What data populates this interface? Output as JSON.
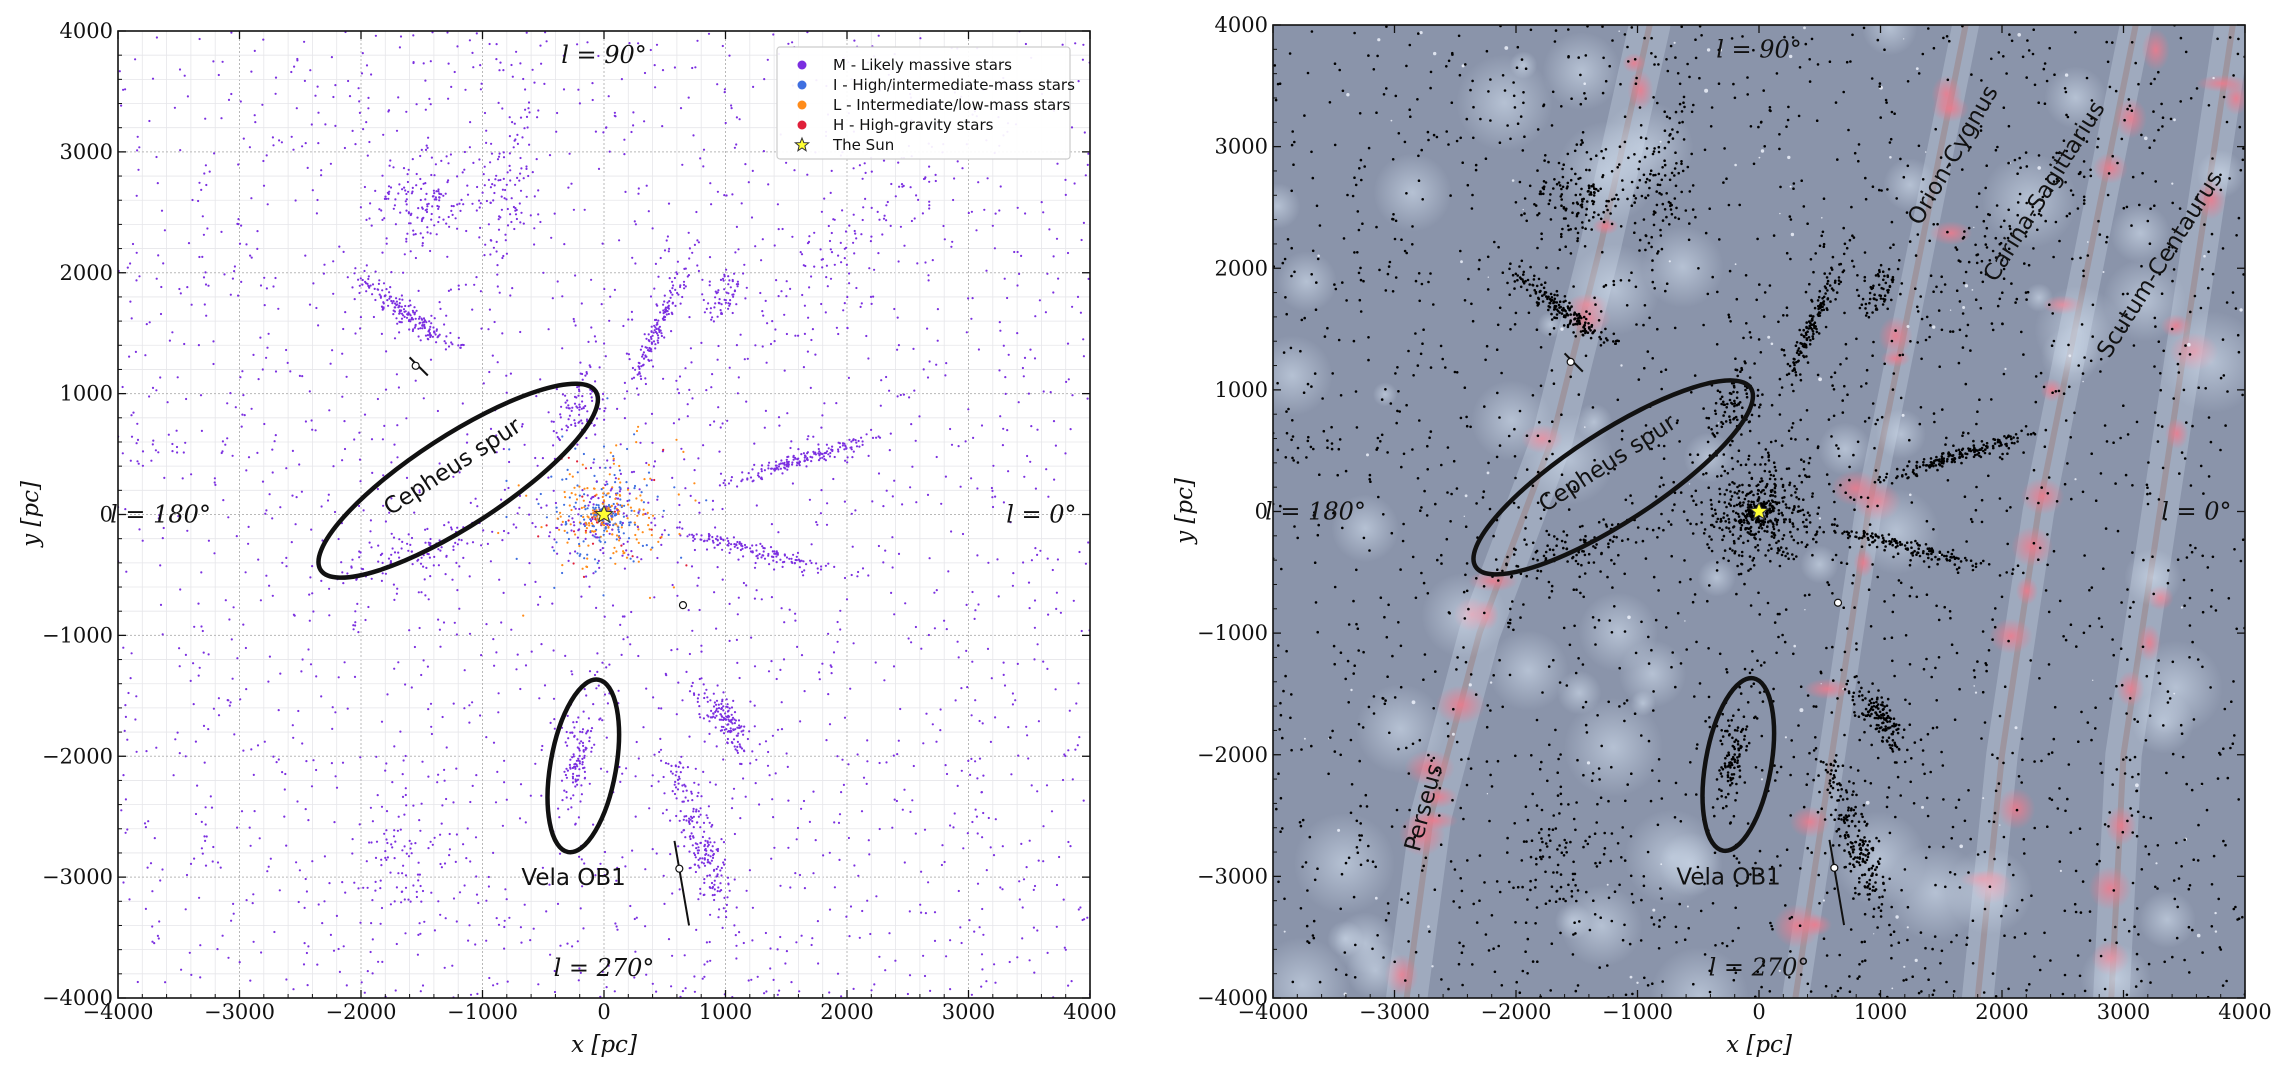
{
  "chart_data": [
    {
      "type": "scatter",
      "title": "",
      "xlabel": "x [pc]",
      "ylabel": "y [pc]",
      "xlim": [
        -4000,
        4000
      ],
      "ylim": [
        -4000,
        4000
      ],
      "ticks": [
        "−4000",
        "−3000",
        "−2000",
        "−1000",
        "0",
        "1000",
        "2000",
        "3000",
        "4000"
      ],
      "tick_values": [
        -4000,
        -3000,
        -2000,
        -1000,
        0,
        1000,
        2000,
        3000,
        4000
      ],
      "grid": true,
      "legend_position": "top-right",
      "series": [
        {
          "name": "M - Likely massive stars",
          "color": "#7b2fe0"
        },
        {
          "name": "I - High/intermediate-mass stars",
          "color": "#3f6fe0"
        },
        {
          "name": "L - Intermediate/low-mass stars",
          "color": "#ff8c1a"
        },
        {
          "name": "H - High-gravity stars",
          "color": "#e0203a"
        },
        {
          "name": "The Sun",
          "color": "#ffff33",
          "marker": "star",
          "x": 0,
          "y": 0
        }
      ],
      "longitude_labels": [
        {
          "text": "l =  90°",
          "x": 0,
          "y": 3800
        },
        {
          "text": "l =  180°",
          "x": -3650,
          "y": 0
        },
        {
          "text": "l =  0°",
          "x": 3600,
          "y": 0
        },
        {
          "text": "l =  270°",
          "x": 0,
          "y": -3750
        }
      ],
      "annotations": [
        {
          "text": "Cepheus spur",
          "x": -1250,
          "y": 400
        },
        {
          "text": "Vela OB1",
          "x": -250,
          "y": -3000
        }
      ],
      "regions": [
        {
          "name": "Cepheus spur",
          "center": [
            -1200,
            280
          ],
          "semi_axes": [
            1350,
            370
          ],
          "angle_deg": 33
        },
        {
          "name": "Vela OB1",
          "center": [
            -170,
            -2080
          ],
          "semi_axes": [
            720,
            270
          ],
          "angle_deg": 80
        }
      ],
      "background": "white"
    },
    {
      "type": "scatter",
      "title": "",
      "xlabel": "x [pc]",
      "ylabel": "y [pc]",
      "xlim": [
        -4000,
        4000
      ],
      "ylim": [
        -4000,
        4000
      ],
      "ticks": [
        "−4000",
        "−3000",
        "−2000",
        "−1000",
        "0",
        "1000",
        "2000",
        "3000",
        "4000"
      ],
      "tick_values": [
        -4000,
        -3000,
        -2000,
        -1000,
        0,
        1000,
        2000,
        3000,
        4000
      ],
      "grid": false,
      "series": [
        {
          "name": "",
          "color": "#000000"
        },
        {
          "name": "The Sun",
          "color": "#ffff33",
          "marker": "star",
          "x": 0,
          "y": 0
        }
      ],
      "longitude_labels": [
        {
          "text": "l =  90°",
          "x": 0,
          "y": 3800
        },
        {
          "text": "l =  180°",
          "x": -3650,
          "y": 0
        },
        {
          "text": "l =  0°",
          "x": 3600,
          "y": 0
        },
        {
          "text": "l =  270°",
          "x": 0,
          "y": -3750
        }
      ],
      "annotations": [
        {
          "text": "Cepheus spur",
          "x": -1250,
          "y": 400
        },
        {
          "text": "Vela OB1",
          "x": -250,
          "y": -3000
        }
      ],
      "arm_labels": [
        {
          "text": "Orion-Cygnus",
          "x": 1650,
          "y": 2900,
          "angle": -60
        },
        {
          "text": "Carina-Sagittarius",
          "x": 2400,
          "y": 2600,
          "angle": -58
        },
        {
          "text": "Scutum-Centaurus",
          "x": 3350,
          "y": 2000,
          "angle": -58
        },
        {
          "text": "Perseus",
          "x": -2700,
          "y": -2450,
          "angle": -75
        }
      ],
      "regions": [
        {
          "name": "Cepheus spur",
          "center": [
            -1200,
            280
          ],
          "semi_axes": [
            1350,
            370
          ],
          "angle_deg": 33
        },
        {
          "name": "Vela OB1",
          "center": [
            -170,
            -2080
          ],
          "semi_axes": [
            720,
            270
          ],
          "angle_deg": 80
        }
      ],
      "background": "galaxy map"
    }
  ],
  "colors": {
    "massive": "#7b2fe0",
    "intermediate": "#3f6fe0",
    "low": "#ff8c1a",
    "high_gravity": "#e0203a",
    "sun": "#ffff33",
    "map_bg": "#8a94aa"
  }
}
